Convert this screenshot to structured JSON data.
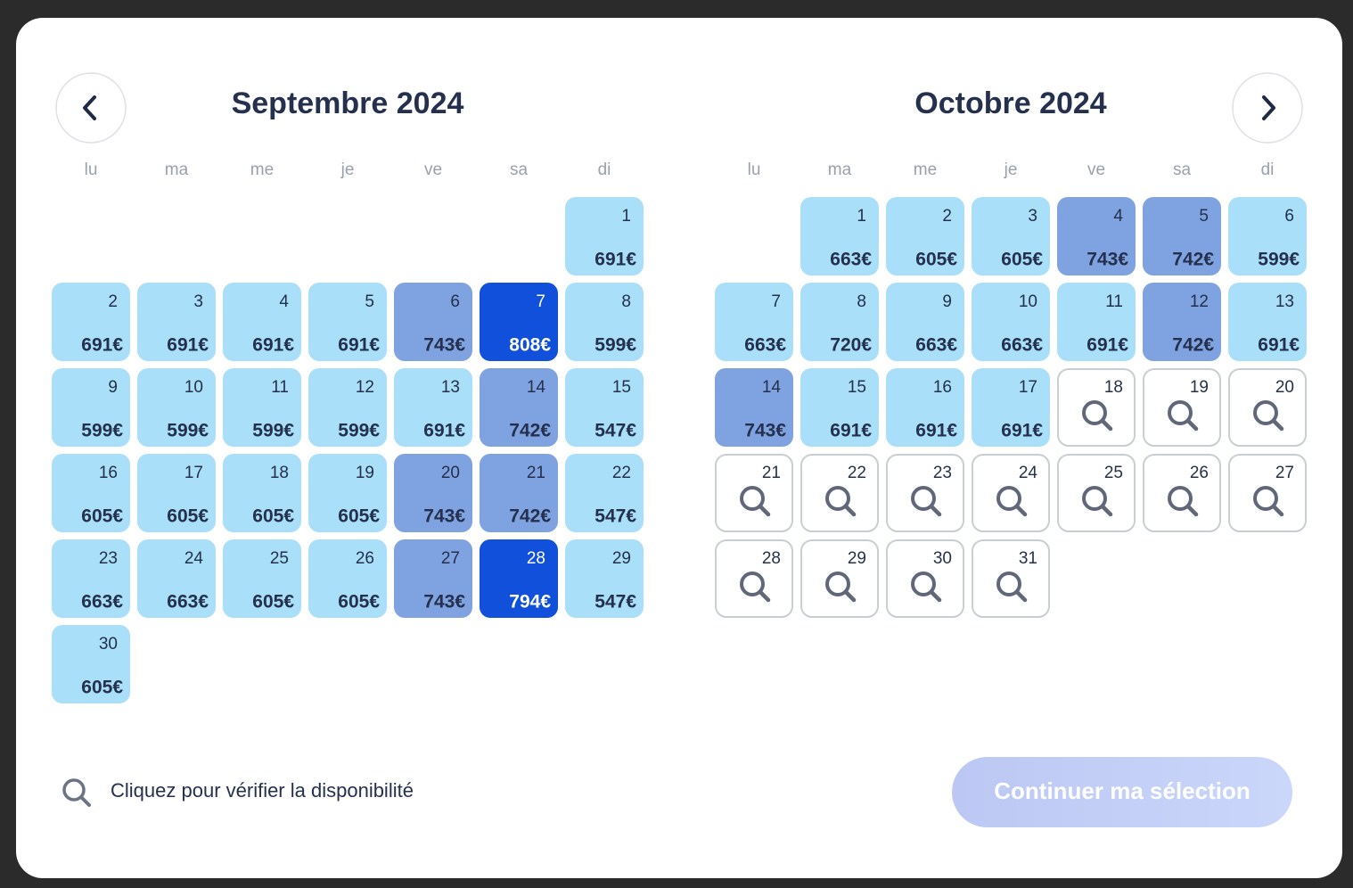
{
  "header": {
    "months": [
      "Septembre 2024",
      "Octobre 2024"
    ]
  },
  "weekdays": [
    "lu",
    "ma",
    "me",
    "je",
    "ve",
    "sa",
    "di"
  ],
  "calendars": [
    {
      "days": [
        null,
        null,
        null,
        null,
        null,
        null,
        {
          "day": 1,
          "price": "691€",
          "color": "#a9dff9"
        },
        {
          "day": 2,
          "price": "691€",
          "color": "#a9dff9"
        },
        {
          "day": 3,
          "price": "691€",
          "color": "#a9dff9"
        },
        {
          "day": 4,
          "price": "691€",
          "color": "#a9dff9"
        },
        {
          "day": 5,
          "price": "691€",
          "color": "#a9dff9"
        },
        {
          "day": 6,
          "price": "743€",
          "color": "#7fa2e1"
        },
        {
          "day": 7,
          "price": "808€",
          "color": "#1150da",
          "text_color": "#ffffff"
        },
        {
          "day": 8,
          "price": "599€",
          "color": "#a9dff9"
        },
        {
          "day": 9,
          "price": "599€",
          "color": "#a9dff9"
        },
        {
          "day": 10,
          "price": "599€",
          "color": "#a9dff9"
        },
        {
          "day": 11,
          "price": "599€",
          "color": "#a9dff9"
        },
        {
          "day": 12,
          "price": "599€",
          "color": "#a9dff9"
        },
        {
          "day": 13,
          "price": "691€",
          "color": "#a9dff9"
        },
        {
          "day": 14,
          "price": "742€",
          "color": "#7fa2e1"
        },
        {
          "day": 15,
          "price": "547€",
          "color": "#a9dff9"
        },
        {
          "day": 16,
          "price": "605€",
          "color": "#a9dff9"
        },
        {
          "day": 17,
          "price": "605€",
          "color": "#a9dff9"
        },
        {
          "day": 18,
          "price": "605€",
          "color": "#a9dff9"
        },
        {
          "day": 19,
          "price": "605€",
          "color": "#a9dff9"
        },
        {
          "day": 20,
          "price": "743€",
          "color": "#7fa2e1"
        },
        {
          "day": 21,
          "price": "742€",
          "color": "#7fa2e1"
        },
        {
          "day": 22,
          "price": "547€",
          "color": "#a9dff9"
        },
        {
          "day": 23,
          "price": "663€",
          "color": "#a9dff9"
        },
        {
          "day": 24,
          "price": "663€",
          "color": "#a9dff9"
        },
        {
          "day": 25,
          "price": "605€",
          "color": "#a9dff9"
        },
        {
          "day": 26,
          "price": "605€",
          "color": "#a9dff9"
        },
        {
          "day": 27,
          "price": "743€",
          "color": "#7fa2e1"
        },
        {
          "day": 28,
          "price": "794€",
          "color": "#1150da",
          "text_color": "#ffffff"
        },
        {
          "day": 29,
          "price": "547€",
          "color": "#a9dff9"
        },
        {
          "day": 30,
          "price": "605€",
          "color": "#a9dff9"
        }
      ]
    },
    {
      "days": [
        null,
        {
          "day": 1,
          "price": "663€",
          "color": "#a9dff9"
        },
        {
          "day": 2,
          "price": "605€",
          "color": "#a9dff9"
        },
        {
          "day": 3,
          "price": "605€",
          "color": "#a9dff9"
        },
        {
          "day": 4,
          "price": "743€",
          "color": "#7fa2e1"
        },
        {
          "day": 5,
          "price": "742€",
          "color": "#7fa2e1"
        },
        {
          "day": 6,
          "price": "599€",
          "color": "#a9dff9"
        },
        {
          "day": 7,
          "price": "663€",
          "color": "#a9dff9"
        },
        {
          "day": 8,
          "price": "720€",
          "color": "#a9dff9"
        },
        {
          "day": 9,
          "price": "663€",
          "color": "#a9dff9"
        },
        {
          "day": 10,
          "price": "663€",
          "color": "#a9dff9"
        },
        {
          "day": 11,
          "price": "691€",
          "color": "#a9dff9"
        },
        {
          "day": 12,
          "price": "742€",
          "color": "#7fa2e1"
        },
        {
          "day": 13,
          "price": "691€",
          "color": "#a9dff9"
        },
        {
          "day": 14,
          "price": "743€",
          "color": "#7fa2e1"
        },
        {
          "day": 15,
          "price": "691€",
          "color": "#a9dff9"
        },
        {
          "day": 16,
          "price": "691€",
          "color": "#a9dff9"
        },
        {
          "day": 17,
          "price": "691€",
          "color": "#a9dff9"
        },
        {
          "day": 18
        },
        {
          "day": 19
        },
        {
          "day": 20
        },
        {
          "day": 21
        },
        {
          "day": 22
        },
        {
          "day": 23
        },
        {
          "day": 24
        },
        {
          "day": 25
        },
        {
          "day": 26
        },
        {
          "day": 27
        },
        {
          "day": 28
        },
        {
          "day": 29
        },
        {
          "day": 30
        },
        {
          "day": 31
        }
      ]
    }
  ],
  "footer": {
    "hint": "Cliquez pour vérifier la disponibilité",
    "button": "Continuer ma sélection"
  }
}
